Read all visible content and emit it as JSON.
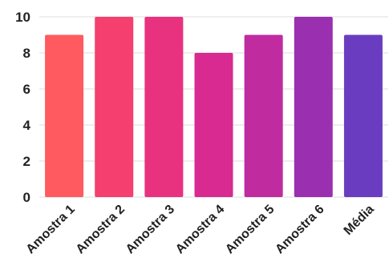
{
  "chart_data": {
    "type": "bar",
    "categories": [
      "Amostra 1",
      "Amostra 2",
      "Amostra 3",
      "Amostra 4",
      "Amostra 5",
      "Amostra 6",
      "Média"
    ],
    "values": [
      9,
      10,
      10,
      8,
      9,
      10,
      9
    ],
    "bar_colors": [
      "#ff5a5f",
      "#f53f6e",
      "#e8327f",
      "#d82a90",
      "#c02ba0",
      "#9a2fb0",
      "#6a3dc0"
    ],
    "y_ticks": [
      0,
      2,
      4,
      6,
      8,
      10
    ],
    "ylim": [
      0,
      10
    ],
    "grid": true,
    "gridline_color": "#dddddd",
    "title": "",
    "xlabel": "",
    "ylabel": ""
  }
}
